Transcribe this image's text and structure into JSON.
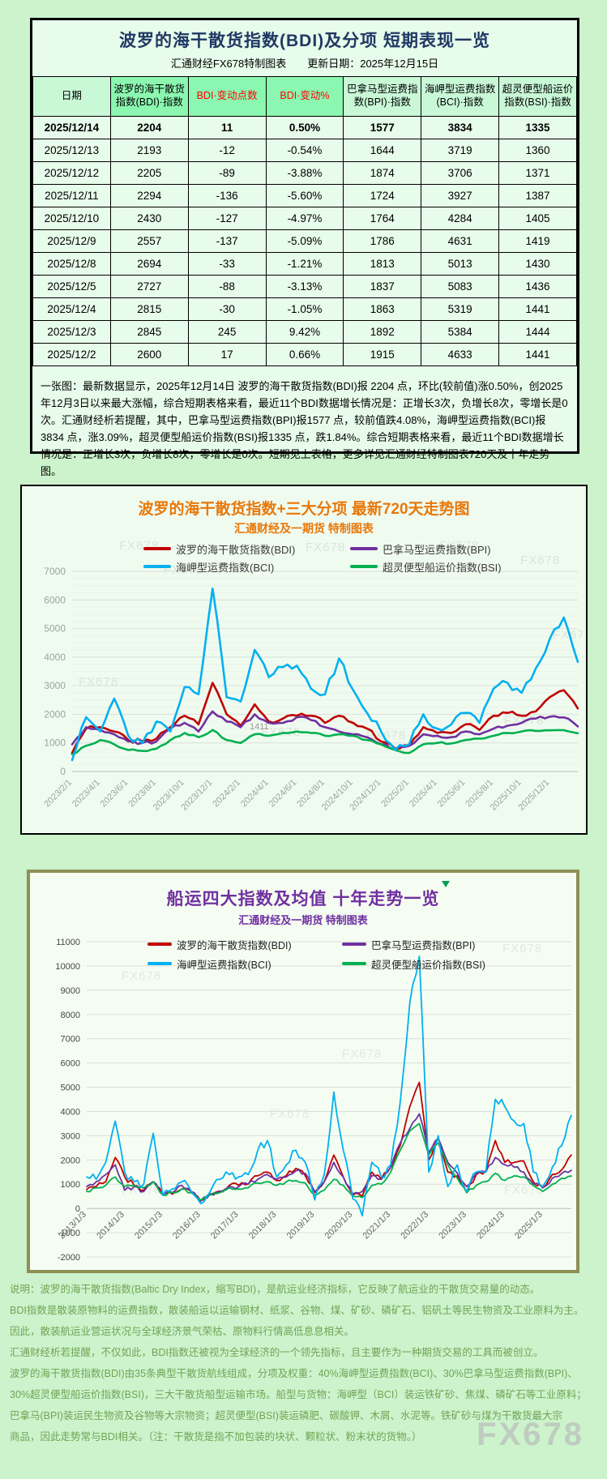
{
  "page": {
    "watermark": "FX678",
    "bg": "#ccf3cc"
  },
  "table_panel": {
    "title": "波罗的海干散货指数(BDI)及分项 短期表现一览",
    "subtitle": "汇通财经FX678特制图表　　更新日期：2025年12月15日",
    "headers": [
      "日期",
      "波罗的海干散货指数(BDI)·指数",
      "BDI·变动点数",
      "BDI·变动%",
      "巴拿马型运费指数(BPI)·指数",
      "海岬型运费指数(BCI)·指数",
      "超灵便型船运价指数(BSI)·指数"
    ],
    "rows": [
      [
        "2025/12/14",
        "2204",
        "11",
        "0.50%",
        "1577",
        "3834",
        "1335"
      ],
      [
        "2025/12/13",
        "2193",
        "-12",
        "-0.54%",
        "1644",
        "3719",
        "1360"
      ],
      [
        "2025/12/12",
        "2205",
        "-89",
        "-3.88%",
        "1874",
        "3706",
        "1371"
      ],
      [
        "2025/12/11",
        "2294",
        "-136",
        "-5.60%",
        "1724",
        "3927",
        "1387"
      ],
      [
        "2025/12/10",
        "2430",
        "-127",
        "-4.97%",
        "1764",
        "4284",
        "1405"
      ],
      [
        "2025/12/9",
        "2557",
        "-137",
        "-5.09%",
        "1786",
        "4631",
        "1419"
      ],
      [
        "2025/12/8",
        "2694",
        "-33",
        "-1.21%",
        "1813",
        "5013",
        "1430"
      ],
      [
        "2025/12/5",
        "2727",
        "-88",
        "-3.13%",
        "1837",
        "5083",
        "1436"
      ],
      [
        "2025/12/4",
        "2815",
        "-30",
        "-1.05%",
        "1863",
        "5319",
        "1441"
      ],
      [
        "2025/12/3",
        "2845",
        "245",
        "9.42%",
        "1892",
        "5384",
        "1444"
      ],
      [
        "2025/12/2",
        "2600",
        "17",
        "0.66%",
        "1915",
        "4633",
        "1441"
      ]
    ],
    "note": "一张图：最新数据显示，2025年12月14日 波罗的海干散货指数(BDI)报 2204 点，环比(较前值)涨0.50%，创2025年12月3日以来最大涨幅，综合短期表格来看，最近11个BDI数据增长情况是：正增长3次，负增长8次，零增长是0次。汇通财经析若提醒，其中，巴拿马型运费指数(BPI)报1577 点，较前值跌4.08%，海岬型运费指数(BCI)报3834 点，涨3.09%，超灵便型船运价指数(BSI)报1335 点，跌1.84%。综合短期表格来看，最近11个BDI数据增长情况是：正增长3次，负增长8次，零增长是0次。短期见上表格，更多详见汇通财经特制图表720天及十年走势图。"
  },
  "chart_data": [
    {
      "type": "line",
      "title": "波罗的海干散货指数+三大分项 最新720天走势图",
      "subtitle": "汇通财经及一期货 特制图表",
      "legend_position": "top",
      "grid": true,
      "ylim": [
        0,
        7000
      ],
      "ytick_step": 1000,
      "x_labels": [
        "2023/2/1",
        "2023/4/1",
        "2023/6/1",
        "2023/8/1",
        "2023/10/1",
        "2023/12/1",
        "2024/2/1",
        "2024/4/1",
        "2024/6/1",
        "2024/8/1",
        "2024/10/1",
        "2024/12/1",
        "2025/2/1",
        "2025/4/1",
        "2025/6/1",
        "2025/8/1",
        "2025/10/1",
        "2025/12/1"
      ],
      "annotation": "1411",
      "watermark": "FX678",
      "series": [
        {
          "name": "波罗的海干散货指数(BDI)",
          "color": "#c00000",
          "values": [
            650,
            1500,
            1550,
            1400,
            1100,
            1050,
            1150,
            1550,
            1950,
            1650,
            3100,
            2000,
            1600,
            2350,
            1750,
            1850,
            1950,
            1950,
            1700,
            1950,
            1700,
            1500,
            1050,
            800,
            900,
            1550,
            1350,
            1350,
            1650,
            1450,
            1950,
            2050,
            1950,
            2100,
            2600,
            2845,
            2204
          ]
        },
        {
          "name": "巴拿马型运费指数(BPI)",
          "color": "#7030a0",
          "values": [
            950,
            1550,
            1450,
            1300,
            1050,
            1000,
            1050,
            1500,
            1700,
            1400,
            2100,
            1750,
            1550,
            2000,
            1700,
            1700,
            1900,
            1800,
            1550,
            1400,
            1300,
            1200,
            950,
            800,
            900,
            1300,
            1250,
            1200,
            1400,
            1300,
            1500,
            1600,
            1700,
            1850,
            1915,
            1892,
            1577
          ]
        },
        {
          "name": "海岬型运费指数(BCI)",
          "color": "#00b0f0",
          "values": [
            400,
            1900,
            1400,
            2550,
            1250,
            1000,
            1750,
            1400,
            2950,
            2700,
            6400,
            2600,
            2450,
            4250,
            3300,
            3650,
            3700,
            2900,
            2700,
            3950,
            2850,
            2050,
            1400,
            750,
            950,
            2000,
            1500,
            1650,
            2050,
            1700,
            2900,
            3100,
            2750,
            3600,
            4633,
            5384,
            3834
          ]
        },
        {
          "name": "超灵便型船运价指数(BSI)",
          "color": "#00b050",
          "values": [
            600,
            900,
            1100,
            950,
            750,
            720,
            800,
            1100,
            1350,
            1200,
            1450,
            1100,
            1000,
            1300,
            1250,
            1350,
            1400,
            1350,
            1250,
            1300,
            1250,
            1100,
            950,
            750,
            650,
            950,
            1000,
            980,
            1100,
            1150,
            1250,
            1350,
            1400,
            1420,
            1441,
            1444,
            1335
          ]
        }
      ]
    },
    {
      "type": "line",
      "title": "船运四大指数及均值 十年走势一览",
      "subtitle": "汇通财经及一期货 特制图表",
      "legend_position": "top",
      "grid": true,
      "ylim": [
        -2000,
        11000
      ],
      "ytick_step": 1000,
      "x_labels": [
        "2013/1/3",
        "2014/1/3",
        "2015/1/3",
        "2016/1/3",
        "2017/1/3",
        "2018/1/3",
        "2019/1/3",
        "2020/1/3",
        "2021/1/3",
        "2022/1/3",
        "2023/1/3",
        "2024/1/3",
        "2025/1/3"
      ],
      "watermark": "FX678",
      "series": [
        {
          "name": "波罗的海干散货指数(BDI)",
          "color": "#c00000",
          "values": [
            780,
            900,
            1100,
            2100,
            1300,
            950,
            750,
            1100,
            600,
            590,
            800,
            700,
            320,
            600,
            720,
            950,
            950,
            1000,
            1350,
            1500,
            1150,
            1350,
            1650,
            1350,
            650,
            1100,
            2200,
            1300,
            550,
            500,
            1500,
            1200,
            1700,
            2600,
            4200,
            5200,
            2000,
            2900,
            1500,
            1350,
            650,
            1400,
            1550,
            2800,
            1900,
            1900,
            1950,
            1100,
            900,
            1400,
            1600,
            2204
          ]
        },
        {
          "name": "巴拿马型运费指数(BPI)",
          "color": "#7030a0",
          "values": [
            900,
            1100,
            1400,
            1800,
            750,
            900,
            700,
            1100,
            600,
            650,
            950,
            700,
            300,
            600,
            700,
            900,
            900,
            1000,
            1200,
            1400,
            1200,
            1300,
            1550,
            1450,
            700,
            1100,
            1900,
            1300,
            600,
            700,
            1350,
            1200,
            1700,
            2700,
            3300,
            3900,
            2300,
            2900,
            1900,
            1450,
            900,
            1450,
            1500,
            2100,
            1800,
            1700,
            1500,
            1000,
            850,
            1250,
            1450,
            1577
          ]
        },
        {
          "name": "海岬型运费指数(BCI)",
          "color": "#00b0f0",
          "values": [
            1300,
            1200,
            1900,
            3600,
            1500,
            1100,
            1000,
            3100,
            550,
            800,
            1100,
            700,
            200,
            700,
            1200,
            1400,
            1300,
            1400,
            2400,
            2800,
            1300,
            1800,
            2400,
            1900,
            350,
            1400,
            4800,
            2400,
            400,
            -300,
            1900,
            1300,
            1800,
            4400,
            8500,
            10400,
            1500,
            3000,
            900,
            1800,
            700,
            1500,
            1500,
            4500,
            4200,
            3600,
            3500,
            1500,
            900,
            1700,
            2600,
            3834
          ]
        },
        {
          "name": "超灵便型船运价指数(BSI)",
          "color": "#00b050",
          "values": [
            700,
            850,
            950,
            1300,
            900,
            950,
            850,
            1100,
            550,
            650,
            800,
            650,
            350,
            550,
            650,
            850,
            800,
            850,
            1050,
            1100,
            950,
            1100,
            1150,
            1050,
            550,
            750,
            1200,
            950,
            500,
            450,
            950,
            1000,
            1500,
            2400,
            3200,
            3500,
            2200,
            2700,
            1800,
            1250,
            650,
            950,
            1100,
            1450,
            1150,
            1350,
            1300,
            950,
            700,
            1000,
            1250,
            1335
          ]
        }
      ]
    }
  ],
  "footer": {
    "lines": [
      "说明：波罗的海干散货指数(Baltic Dry Index，缩写BDI)，是航运业经济指标，它反映了航运业的干散货交易量的动态。",
      "BDI指数是散装原物料的运费指数，散装船运以运输钢材、纸浆、谷物、煤、矿砂、磷矿石、铝矾土等民生物资及工业原料为主。",
      "因此，散装航运业营运状况与全球经济景气荣枯、原物料行情高低息息相关。",
      "汇通财经析若提醒，不仅如此，BDI指数还被视为全球经济的一个领先指标，且主要作为一种期货交易的工具而被创立。",
      "波罗的海干散货指数(BDI)由35条典型干散货航线组成，分项及权重：40%海岬型运费指数(BCI)、30%巴拿马型运费指数(BPI)、",
      "30%超灵便型船运价指数(BSI)，三大干散货船型运输市场。船型与货物：海岬型（BCI）装运铁矿砂、焦煤、磷矿石等工业原料；",
      "巴拿马(BPI)装运民生物资及谷物等大宗物资；超灵便型(BSI)装运磷肥、碳酸钾、木屑、水泥等。铁矿砂与煤为干散货最大宗",
      "商品，因此走势常与BDI相关。（注：干散货是指不加包装的块状、颗粒状、粉末状的货物。）"
    ]
  }
}
